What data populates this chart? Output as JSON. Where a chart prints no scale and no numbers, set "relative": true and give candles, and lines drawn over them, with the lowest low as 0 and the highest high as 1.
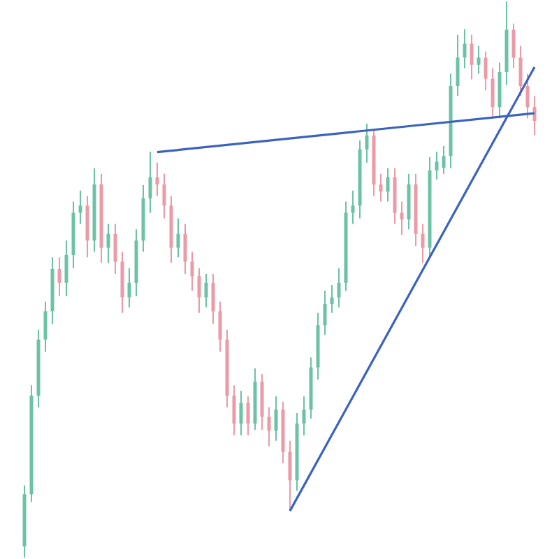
{
  "chart_data": {
    "type": "candlestick",
    "relative": true,
    "tick_labels": false,
    "colors": [
      "#6cc2a4",
      "#6cc2a4",
      "#6cc2a4",
      "#6cc2a4",
      "#6cc2a4",
      "#eb9aa6",
      "#6cc2a4",
      "#6cc2a4",
      "#6cc2a4",
      "#eb9aa6",
      "#6cc2a4",
      "#eb9aa6",
      "#6cc2a4",
      "#eb9aa6",
      "#eb9aa6",
      "#6cc2a4",
      "#6cc2a4",
      "#6cc2a4",
      "#6cc2a4",
      "#eb9aa6",
      "#eb9aa6",
      "#eb9aa6",
      "#6cc2a4",
      "#eb9aa6",
      "#eb9aa6",
      "#eb9aa6",
      "#6cc2a4",
      "#eb9aa6",
      "#eb9aa6",
      "#eb9aa6",
      "#eb9aa6",
      "#6cc2a4",
      "#eb9aa6",
      "#6cc2a4",
      "#eb9aa6",
      "#eb9aa6",
      "#6cc2a4",
      "#eb9aa6",
      "#eb9aa6",
      "#6cc2a4",
      "#6cc2a4",
      "#6cc2a4",
      "#6cc2a4",
      "#6cc2a4",
      "#6cc2a4",
      "#6cc2a4",
      "#6cc2a4",
      "#6cc2a4",
      "#6cc2a4",
      "#6cc2a4",
      "#eb9aa6",
      "#eb9aa6",
      "#6cc2a4",
      "#eb9aa6",
      "#eb9aa6",
      "#6cc2a4",
      "#eb9aa6",
      "#eb9aa6",
      "#6cc2a4",
      "#6cc2a4",
      "#6cc2a4",
      "#6cc2a4",
      "#6cc2a4",
      "#6cc2a4",
      "#eb9aa6",
      "#6cc2a4",
      "#eb9aa6",
      "#eb9aa6",
      "#6cc2a4",
      "#6cc2a4",
      "#eb9aa6",
      "#eb9aa6",
      "#eb9aa6",
      "#eb9aa6"
    ],
    "categories": [
      null,
      null,
      null,
      null,
      null,
      null,
      null,
      null,
      null,
      null,
      null,
      null,
      null,
      null,
      null,
      null,
      null,
      null,
      null,
      null,
      null,
      null,
      null,
      null,
      null,
      null,
      null,
      null,
      null,
      null,
      null,
      null,
      null,
      null,
      null,
      null,
      null,
      null,
      null,
      null,
      null,
      null,
      null,
      null,
      null,
      null,
      null,
      null,
      null,
      null,
      null,
      null,
      null,
      null,
      null,
      null,
      null,
      null,
      null,
      null,
      null,
      null,
      null,
      null,
      null,
      null,
      null,
      null,
      null,
      null,
      null,
      null,
      null,
      null
    ],
    "ohlc": [
      [
        0.02,
        0.13,
        0,
        0.114
      ],
      [
        0.114,
        0.31,
        0.1,
        0.291
      ],
      [
        0.291,
        0.41,
        0.27,
        0.392
      ],
      [
        0.392,
        0.46,
        0.37,
        0.443
      ],
      [
        0.443,
        0.54,
        0.42,
        0.519
      ],
      [
        0.519,
        0.54,
        0.47,
        0.494
      ],
      [
        0.494,
        0.57,
        0.47,
        0.544
      ],
      [
        0.544,
        0.64,
        0.52,
        0.62
      ],
      [
        0.62,
        0.66,
        0.6,
        0.633
      ],
      [
        0.633,
        0.65,
        0.54,
        0.57
      ],
      [
        0.57,
        0.7,
        0.55,
        0.671
      ],
      [
        0.671,
        0.69,
        0.53,
        0.557
      ],
      [
        0.557,
        0.6,
        0.53,
        0.582
      ],
      [
        0.582,
        0.6,
        0.51,
        0.532
      ],
      [
        0.532,
        0.55,
        0.44,
        0.468
      ],
      [
        0.468,
        0.52,
        0.45,
        0.494
      ],
      [
        0.494,
        0.59,
        0.47,
        0.57
      ],
      [
        0.57,
        0.67,
        0.55,
        0.646
      ],
      [
        0.646,
        0.73,
        0.62,
        0.684
      ],
      [
        0.684,
        0.71,
        0.65,
        0.671
      ],
      [
        0.671,
        0.69,
        0.61,
        0.633
      ],
      [
        0.633,
        0.65,
        0.53,
        0.557
      ],
      [
        0.557,
        0.61,
        0.54,
        0.582
      ],
      [
        0.582,
        0.6,
        0.51,
        0.532
      ],
      [
        0.532,
        0.55,
        0.48,
        0.506
      ],
      [
        0.506,
        0.52,
        0.44,
        0.468
      ],
      [
        0.468,
        0.51,
        0.45,
        0.494
      ],
      [
        0.494,
        0.51,
        0.42,
        0.443
      ],
      [
        0.443,
        0.46,
        0.37,
        0.392
      ],
      [
        0.392,
        0.41,
        0.27,
        0.291
      ],
      [
        0.291,
        0.31,
        0.22,
        0.241
      ],
      [
        0.241,
        0.3,
        0.22,
        0.278
      ],
      [
        0.278,
        0.29,
        0.22,
        0.241
      ],
      [
        0.241,
        0.34,
        0.23,
        0.316
      ],
      [
        0.316,
        0.33,
        0.23,
        0.253
      ],
      [
        0.253,
        0.27,
        0.2,
        0.228
      ],
      [
        0.228,
        0.29,
        0.21,
        0.266
      ],
      [
        0.266,
        0.28,
        0.17,
        0.19
      ],
      [
        0.19,
        0.21,
        0.084,
        0.139
      ],
      [
        0.139,
        0.26,
        0.12,
        0.241
      ],
      [
        0.241,
        0.29,
        0.22,
        0.266
      ],
      [
        0.266,
        0.36,
        0.25,
        0.342
      ],
      [
        0.342,
        0.44,
        0.32,
        0.418
      ],
      [
        0.418,
        0.48,
        0.4,
        0.456
      ],
      [
        0.456,
        0.49,
        0.44,
        0.468
      ],
      [
        0.468,
        0.52,
        0.45,
        0.494
      ],
      [
        0.494,
        0.64,
        0.48,
        0.62
      ],
      [
        0.62,
        0.66,
        0.6,
        0.633
      ],
      [
        0.633,
        0.75,
        0.61,
        0.734
      ],
      [
        0.734,
        0.78,
        0.71,
        0.759
      ],
      [
        0.759,
        0.77,
        0.65,
        0.671
      ],
      [
        0.671,
        0.69,
        0.64,
        0.658
      ],
      [
        0.658,
        0.7,
        0.64,
        0.684
      ],
      [
        0.684,
        0.7,
        0.6,
        0.62
      ],
      [
        0.62,
        0.64,
        0.58,
        0.608
      ],
      [
        0.608,
        0.69,
        0.59,
        0.671
      ],
      [
        0.671,
        0.69,
        0.56,
        0.582
      ],
      [
        0.582,
        0.6,
        0.53,
        0.557
      ],
      [
        0.557,
        0.72,
        0.54,
        0.696
      ],
      [
        0.696,
        0.73,
        0.68,
        0.712
      ],
      [
        0.701,
        0.74,
        0.69,
        0.722
      ],
      [
        0.722,
        0.87,
        0.7,
        0.848
      ],
      [
        0.848,
        0.94,
        0.83,
        0.899
      ],
      [
        0.899,
        0.95,
        0.88,
        0.924
      ],
      [
        0.924,
        0.94,
        0.86,
        0.886
      ],
      [
        0.886,
        0.92,
        0.87,
        0.899
      ],
      [
        0.899,
        0.91,
        0.84,
        0.861
      ],
      [
        0.861,
        0.88,
        0.79,
        0.81
      ],
      [
        0.81,
        0.89,
        0.79,
        0.873
      ],
      [
        0.873,
        1.0,
        0.85,
        0.949
      ],
      [
        0.949,
        0.96,
        0.88,
        0.899
      ],
      [
        0.899,
        0.92,
        0.83,
        0.848
      ],
      [
        0.848,
        0.87,
        0.79,
        0.81
      ],
      [
        0.81,
        0.83,
        0.76,
        0.785
      ]
    ],
    "series": [
      {
        "type": "line",
        "color": "#3a62c0",
        "values": [
          null,
          null,
          null,
          null,
          null,
          null,
          null,
          null,
          null,
          null,
          null,
          null,
          null,
          null,
          null,
          null,
          null,
          null,
          null,
          0.729,
          null,
          null,
          null,
          null,
          null,
          null,
          null,
          null,
          null,
          null,
          null,
          null,
          null,
          null,
          null,
          null,
          null,
          null,
          null,
          null,
          null,
          null,
          null,
          null,
          null,
          null,
          null,
          null,
          null,
          null,
          null,
          null,
          null,
          null,
          null,
          null,
          null,
          null,
          null,
          null,
          null,
          null,
          null,
          null,
          null,
          null,
          null,
          null,
          null,
          null,
          null,
          null,
          null,
          0.799
        ]
      },
      {
        "type": "line",
        "color": "#3a62c0",
        "values": [
          null,
          null,
          null,
          null,
          null,
          null,
          null,
          null,
          null,
          null,
          null,
          null,
          null,
          null,
          null,
          null,
          null,
          null,
          null,
          null,
          null,
          null,
          null,
          null,
          null,
          null,
          null,
          null,
          null,
          null,
          null,
          null,
          null,
          null,
          null,
          null,
          null,
          null,
          0.084,
          null,
          null,
          null,
          null,
          null,
          null,
          null,
          null,
          null,
          null,
          null,
          null,
          null,
          null,
          null,
          null,
          null,
          null,
          null,
          null,
          null,
          null,
          null,
          null,
          null,
          null,
          null,
          null,
          null,
          null,
          null,
          null,
          null,
          null,
          0.882
        ]
      }
    ]
  }
}
